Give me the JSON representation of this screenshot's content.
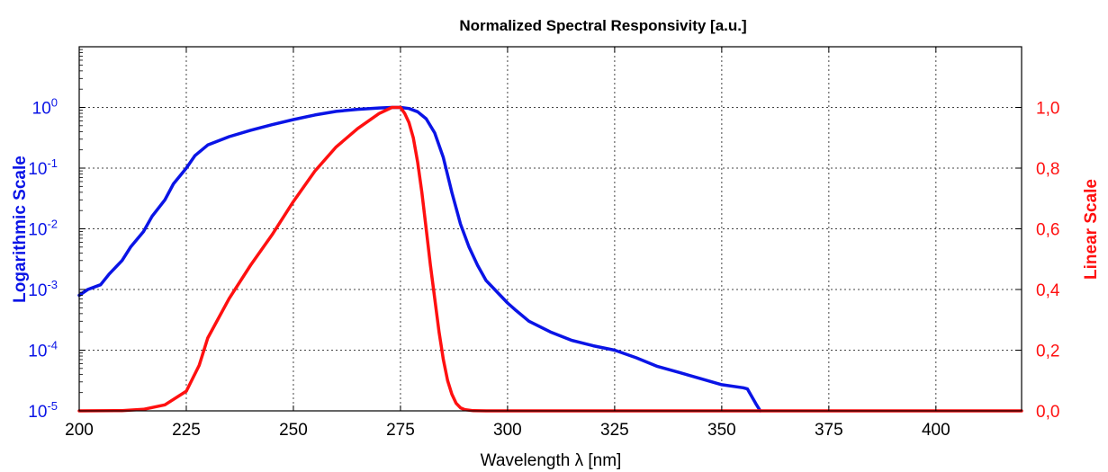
{
  "chart_data": {
    "type": "line",
    "title": "Normalized Spectral Responsivity [a.u.]",
    "xlabel": "Wavelength λ [nm]",
    "xlim": [
      200,
      420
    ],
    "x_ticks": [
      "200",
      "225",
      "250",
      "275",
      "300",
      "325",
      "350",
      "375",
      "400"
    ],
    "grid": true,
    "y_left": {
      "label": "Logarithmic Scale",
      "scale": "log",
      "ylim": [
        1e-05,
        10
      ],
      "color": "#0a14e6",
      "ticks": [
        {
          "base": "10",
          "exp": "-5"
        },
        {
          "base": "10",
          "exp": "-4"
        },
        {
          "base": "10",
          "exp": "-3"
        },
        {
          "base": "10",
          "exp": "-2"
        },
        {
          "base": "10",
          "exp": "-1"
        },
        {
          "base": "10",
          "exp": "0"
        }
      ]
    },
    "y_right": {
      "label": "Linear Scale",
      "scale": "linear",
      "ylim": [
        0,
        1.2
      ],
      "color": "#ff1010",
      "ticks": [
        "0,0",
        "0,2",
        "0,4",
        "0,6",
        "0,8",
        "1,0"
      ]
    },
    "series": [
      {
        "axis": "left",
        "color": "#0a14e6",
        "x": [
          200,
          202,
          205,
          207,
          210,
          212,
          215,
          217,
          220,
          222,
          225,
          227,
          230,
          235,
          240,
          245,
          250,
          255,
          260,
          265,
          270,
          273,
          275,
          277,
          279,
          281,
          283,
          285,
          287,
          289,
          291,
          293,
          295,
          297,
          300,
          302,
          305,
          310,
          315,
          320,
          325,
          330,
          335,
          340,
          345,
          350,
          355,
          356,
          358,
          359
        ],
        "y": [
          0.0008,
          0.001,
          0.0012,
          0.0018,
          0.003,
          0.005,
          0.009,
          0.016,
          0.03,
          0.055,
          0.1,
          0.16,
          0.24,
          0.33,
          0.42,
          0.52,
          0.63,
          0.75,
          0.86,
          0.93,
          0.98,
          1.0,
          1.0,
          0.96,
          0.85,
          0.65,
          0.38,
          0.15,
          0.04,
          0.012,
          0.005,
          0.0025,
          0.0014,
          0.001,
          0.0006,
          0.00045,
          0.0003,
          0.0002,
          0.000145,
          0.000118,
          0.0001,
          7.5e-05,
          5.4e-05,
          4.3e-05,
          3.4e-05,
          2.7e-05,
          2.4e-05,
          2.3e-05,
          1.3e-05,
          1e-05
        ]
      },
      {
        "axis": "right",
        "color": "#ff1010",
        "x": [
          200,
          210,
          215,
          220,
          225,
          228,
          230,
          235,
          240,
          245,
          250,
          255,
          260,
          265,
          270,
          273,
          275,
          276,
          277,
          278,
          279,
          280,
          281,
          282,
          283,
          284,
          285,
          286,
          287,
          288,
          289,
          290,
          292,
          295,
          300,
          420
        ],
        "y": [
          0.0,
          0.001,
          0.005,
          0.02,
          0.065,
          0.15,
          0.24,
          0.37,
          0.48,
          0.58,
          0.69,
          0.79,
          0.87,
          0.93,
          0.98,
          1.0,
          1.0,
          0.98,
          0.95,
          0.9,
          0.82,
          0.72,
          0.6,
          0.48,
          0.37,
          0.26,
          0.17,
          0.1,
          0.055,
          0.025,
          0.01,
          0.004,
          0.0005,
          0.0,
          0.0,
          0.0
        ]
      }
    ]
  }
}
